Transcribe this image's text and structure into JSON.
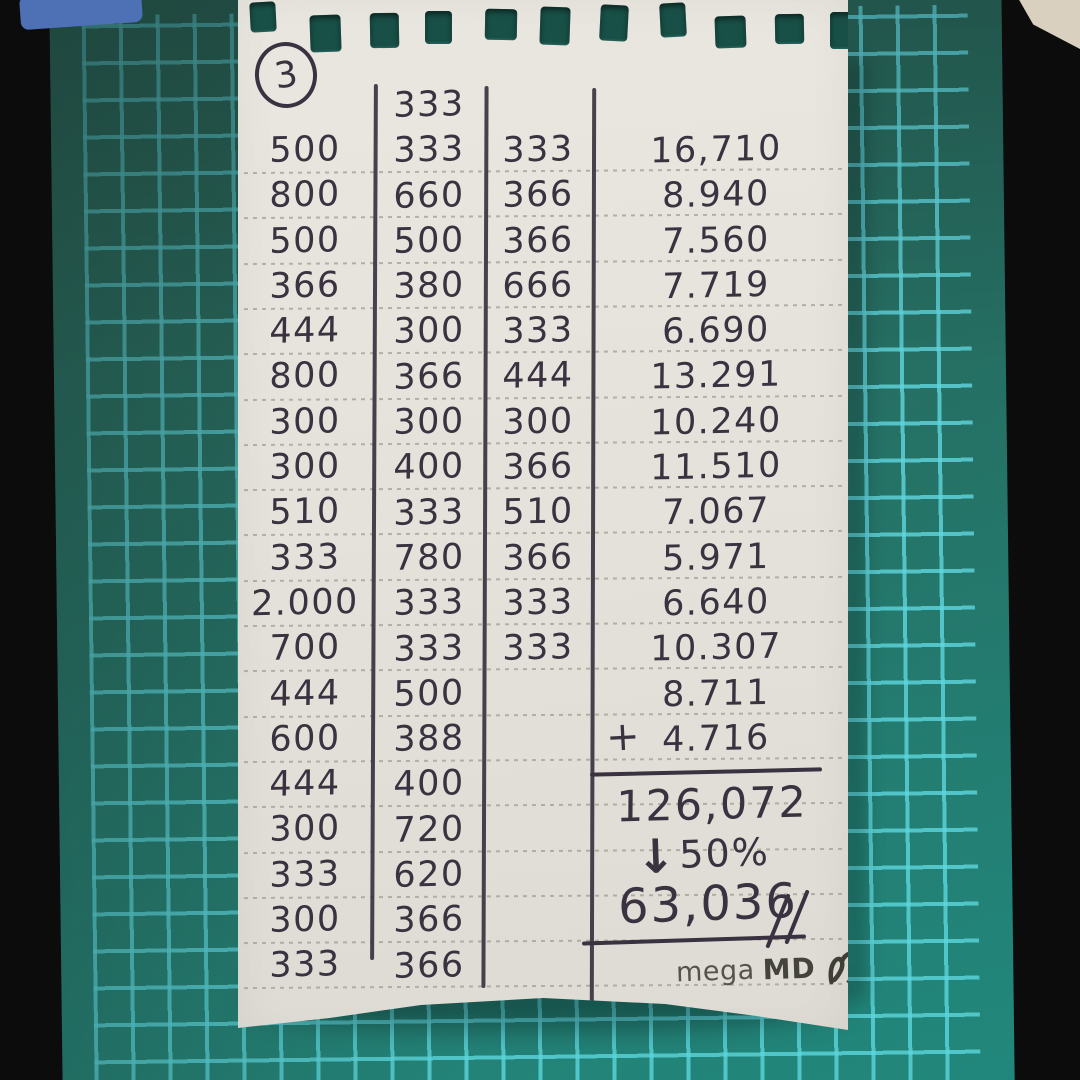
{
  "page": {
    "number": "3"
  },
  "table": {
    "column1": [
      "500",
      "800",
      "500",
      "366",
      "444",
      "800",
      "300",
      "300",
      "510",
      "333",
      "2.000",
      "700",
      "444",
      "600",
      "444",
      "300",
      "333",
      "300",
      "333"
    ],
    "column2_header": "333",
    "column2": [
      "333",
      "660",
      "500",
      "380",
      "300",
      "366",
      "300",
      "400",
      "333",
      "780",
      "333",
      "333",
      "500",
      "388",
      "400",
      "720",
      "620",
      "366",
      "366"
    ],
    "column3": [
      "333",
      "366",
      "366",
      "666",
      "333",
      "444",
      "300",
      "366",
      "510",
      "366",
      "333",
      "333"
    ],
    "column4": [
      "16,710",
      "8.940",
      "7.560",
      "7.719",
      "6.690",
      "13.291",
      "10.240",
      "11.510",
      "7.067",
      "5.971",
      "6.640",
      "10.307",
      "8.711"
    ],
    "addend_operator": "+",
    "addend_value": "4.716"
  },
  "summary": {
    "subtotal": "126,072",
    "discount_arrow": "↓",
    "discount_label": "50%",
    "final_total": "63,036"
  },
  "branding": {
    "brand_word_1": "mega",
    "brand_word_2": "MD"
  },
  "colors": {
    "ink": "#3a3240",
    "paper": "#e4e2da",
    "mat_base": "#2b6b5f",
    "mat_grid": "#60d6de",
    "desk_background": "#0c0c0c",
    "ruled_line": "#9c9a8c"
  }
}
